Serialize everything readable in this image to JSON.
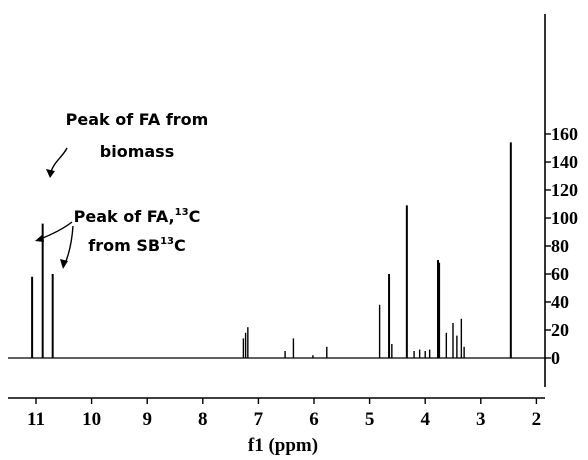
{
  "chart_data": {
    "type": "line",
    "title": "",
    "xlabel": "f1 (ppm)",
    "ylabel": "",
    "xlim": [
      11.45,
      1.75
    ],
    "ylim": [
      -10,
      165
    ],
    "x_ticks": [
      11,
      10,
      9,
      8,
      7,
      6,
      5,
      4,
      3,
      2
    ],
    "y_ticks": [
      0,
      20,
      40,
      60,
      80,
      100,
      120,
      140,
      160
    ],
    "x_reversed": true,
    "y_axis_position": "right",
    "grid": false,
    "baseline": 0,
    "series": [
      {
        "peaks": [
          {
            "ppm": 11.07,
            "intensity": 58
          },
          {
            "ppm": 10.88,
            "intensity": 96
          },
          {
            "ppm": 10.7,
            "intensity": 60
          },
          {
            "ppm": 7.27,
            "intensity": 14
          },
          {
            "ppm": 7.23,
            "intensity": 18
          },
          {
            "ppm": 7.19,
            "intensity": 22
          },
          {
            "ppm": 6.52,
            "intensity": 5
          },
          {
            "ppm": 6.37,
            "intensity": 14
          },
          {
            "ppm": 6.02,
            "intensity": 2
          },
          {
            "ppm": 5.77,
            "intensity": 8
          },
          {
            "ppm": 4.82,
            "intensity": 38
          },
          {
            "ppm": 4.65,
            "intensity": 60
          },
          {
            "ppm": 4.6,
            "intensity": 10
          },
          {
            "ppm": 4.33,
            "intensity": 109
          },
          {
            "ppm": 4.2,
            "intensity": 5
          },
          {
            "ppm": 4.1,
            "intensity": 6
          },
          {
            "ppm": 4.0,
            "intensity": 5
          },
          {
            "ppm": 3.92,
            "intensity": 6
          },
          {
            "ppm": 3.77,
            "intensity": 70
          },
          {
            "ppm": 3.75,
            "intensity": 68
          },
          {
            "ppm": 3.62,
            "intensity": 18
          },
          {
            "ppm": 3.5,
            "intensity": 25
          },
          {
            "ppm": 3.43,
            "intensity": 16
          },
          {
            "ppm": 3.35,
            "intensity": 28
          },
          {
            "ppm": 3.3,
            "intensity": 8
          },
          {
            "ppm": 2.46,
            "intensity": 154
          }
        ]
      }
    ],
    "annotations": [
      {
        "text": "Peak of FA from",
        "anchor_ppm": 10.88
      },
      {
        "text": "biomass",
        "anchor_ppm": 10.88
      },
      {
        "text": "Peak of FA,",
        "sup": "13",
        "tail": "C"
      },
      {
        "text": "from SB",
        "sup": "13",
        "tail": "C"
      }
    ]
  }
}
